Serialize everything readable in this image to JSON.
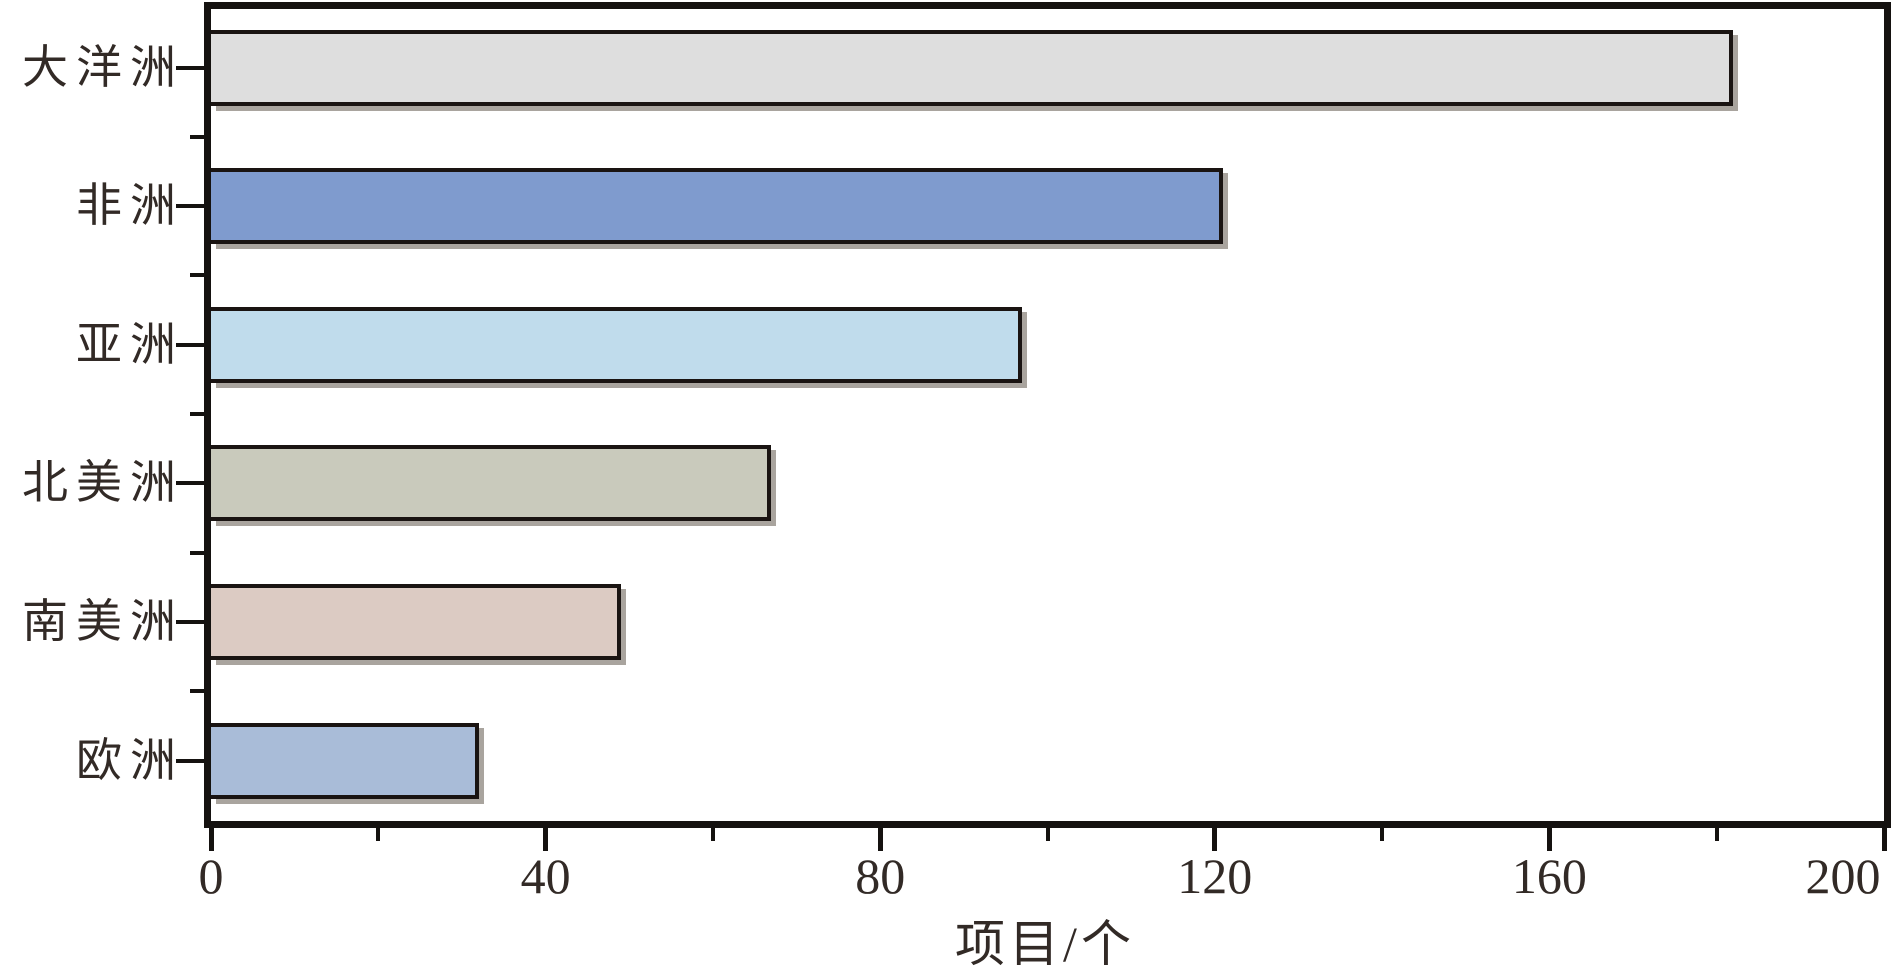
{
  "chart_data": {
    "type": "bar",
    "orientation": "horizontal",
    "title": "",
    "xlabel": "项目/个",
    "ylabel": "",
    "xlim": [
      0,
      200
    ],
    "x_major_ticks": [
      0,
      40,
      80,
      120,
      160,
      200
    ],
    "x_minor_ticks": [
      20,
      60,
      100,
      140,
      180
    ],
    "categories": [
      "大洋洲",
      "非洲",
      "亚洲",
      "北美洲",
      "南美洲",
      "欧洲"
    ],
    "category_names": [
      "oceania",
      "africa",
      "asia",
      "north-america",
      "south-america",
      "europe"
    ],
    "values": [
      182,
      121,
      97,
      67,
      49,
      32
    ],
    "bar_colors": [
      "#dedede",
      "#7f9bce",
      "#c0dcec",
      "#c9cabc",
      "#dccbc3",
      "#a9bcd8"
    ],
    "bar_border_color": "#1a1412",
    "axis_color": "#151210",
    "text_color": "#322a26",
    "shadow_color": "#a9a49e",
    "grid": "off",
    "legend": "none"
  }
}
